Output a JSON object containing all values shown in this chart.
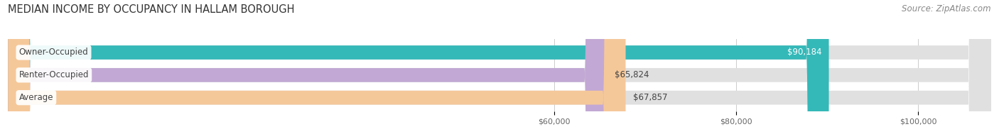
{
  "title": "MEDIAN INCOME BY OCCUPANCY IN HALLAM BOROUGH",
  "source": "Source: ZipAtlas.com",
  "categories": [
    "Owner-Occupied",
    "Renter-Occupied",
    "Average"
  ],
  "values": [
    90184,
    65824,
    67857
  ],
  "labels": [
    "$90,184",
    "$65,824",
    "$67,857"
  ],
  "label_in_bar": [
    true,
    false,
    false
  ],
  "bar_colors": [
    "#35b8b8",
    "#c2a8d4",
    "#f5c89a"
  ],
  "bar_bg_color": "#e0e0e0",
  "xlim_min": 0,
  "xlim_max": 108000,
  "xticks": [
    60000,
    80000,
    100000
  ],
  "xtick_labels": [
    "$60,000",
    "$80,000",
    "$100,000"
  ],
  "title_fontsize": 10.5,
  "source_fontsize": 8.5,
  "label_fontsize": 8.5,
  "cat_fontsize": 8.5,
  "tick_fontsize": 8,
  "background_color": "#ffffff"
}
